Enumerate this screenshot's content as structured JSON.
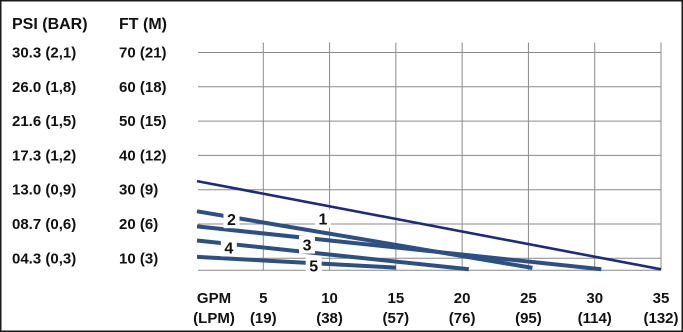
{
  "chart_data": {
    "type": "line",
    "y_headers": [
      "PSI (BAR)",
      "FT (M)"
    ],
    "y_labels_psi": [
      "30.3 (2,1)",
      "26.0 (1,8)",
      "21.6 (1,5)",
      "17.3 (1,2)",
      "13.0 (0,9)",
      "08.7 (0,6)",
      "04.3 (0,3)"
    ],
    "y_labels_ft": [
      "70 (21)",
      "60 (18)",
      "50 (15)",
      "40 (12)",
      "30 (9)",
      "20 (6)",
      "10 (3)"
    ],
    "y_ticks": [
      70,
      60,
      50,
      40,
      30,
      20,
      10
    ],
    "ylim": [
      5,
      75
    ],
    "x_header_top": "GPM",
    "x_header_bottom": "(LPM)",
    "x_ticks": [
      5,
      10,
      15,
      20,
      25,
      30,
      35
    ],
    "x_labels_top": [
      "5",
      "10",
      "15",
      "20",
      "25",
      "30",
      "35"
    ],
    "x_labels_bottom": [
      "(19)",
      "(38)",
      "(57)",
      "(76)",
      "(95)",
      "(114)",
      "(132)"
    ],
    "xlim": [
      0,
      35
    ],
    "grid": true,
    "series": [
      {
        "name": "1",
        "color": "#1f2a7a",
        "x": [
          0,
          35
        ],
        "y": [
          32.5,
          6.8
        ],
        "label_at": [
          9.5,
          21.6
        ]
      },
      {
        "name": "2",
        "color": "#2c4f84",
        "x": [
          0,
          25.3
        ],
        "y": [
          23.7,
          7.2
        ],
        "label_at": [
          2.6,
          21.4
        ]
      },
      {
        "name": "3",
        "color": "#2c4f84",
        "x": [
          0,
          30.5
        ],
        "y": [
          19.3,
          6.8
        ],
        "label_at": [
          8.3,
          14.0
        ]
      },
      {
        "name": "4",
        "color": "#2c4f84",
        "x": [
          0,
          20.5
        ],
        "y": [
          15.2,
          6.8
        ],
        "label_at": [
          2.4,
          13.2
        ]
      },
      {
        "name": "5",
        "color": "#2c4f84",
        "x": [
          0,
          15
        ],
        "y": [
          10.4,
          7.3
        ],
        "label_at": [
          8.8,
          7.9
        ]
      }
    ]
  }
}
